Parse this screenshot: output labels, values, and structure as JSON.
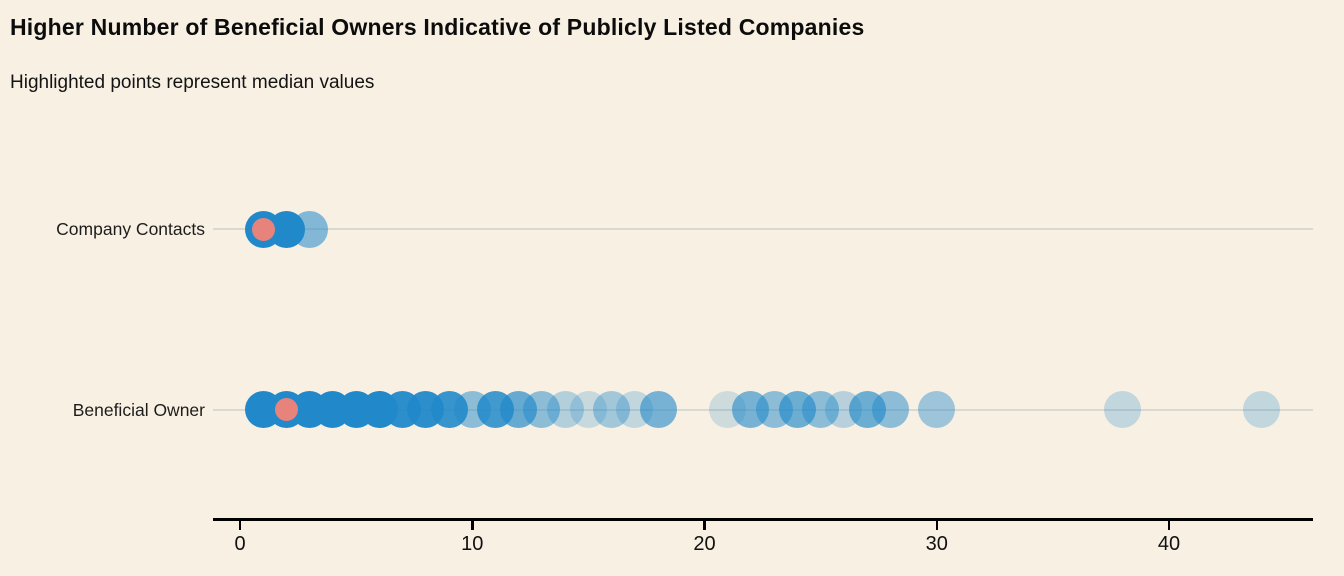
{
  "header": {
    "title": "Higher Number of Beneficial Owners Indicative of Publicly Listed Companies",
    "subtitle": "Highlighted points represent median values"
  },
  "chart_data": {
    "type": "scatter",
    "variant": "strip-plot",
    "title": "Higher Number of Beneficial Owners Indicative of Publicly Listed Companies",
    "subtitle": "Highlighted points represent median values",
    "xlabel": "",
    "ylabel": "",
    "x_axis": {
      "ticks": [
        0,
        10,
        20,
        30,
        40
      ],
      "range": [
        -1.2,
        46.2
      ]
    },
    "grid": "horizontal-category-lines",
    "legend": "none",
    "rows": [
      {
        "label": "Company Contacts",
        "median": 1,
        "points": [
          {
            "x": 1,
            "opacity": 1.0
          },
          {
            "x": 2,
            "opacity": 1.0
          },
          {
            "x": 3,
            "opacity": 0.55
          }
        ]
      },
      {
        "label": "Beneficial Owner",
        "median": 2,
        "points": [
          {
            "x": 1,
            "opacity": 1.0
          },
          {
            "x": 2,
            "opacity": 1.0
          },
          {
            "x": 3,
            "opacity": 1.0
          },
          {
            "x": 4,
            "opacity": 1.0
          },
          {
            "x": 5,
            "opacity": 1.0
          },
          {
            "x": 6,
            "opacity": 1.0
          },
          {
            "x": 7,
            "opacity": 0.95
          },
          {
            "x": 8,
            "opacity": 0.95
          },
          {
            "x": 9,
            "opacity": 0.9
          },
          {
            "x": 10,
            "opacity": 0.5
          },
          {
            "x": 11,
            "opacity": 0.85
          },
          {
            "x": 12,
            "opacity": 0.68
          },
          {
            "x": 13,
            "opacity": 0.5
          },
          {
            "x": 14,
            "opacity": 0.32
          },
          {
            "x": 15,
            "opacity": 0.22
          },
          {
            "x": 16,
            "opacity": 0.4
          },
          {
            "x": 17,
            "opacity": 0.25
          },
          {
            "x": 18,
            "opacity": 0.6
          },
          {
            "x": 21,
            "opacity": 0.2
          },
          {
            "x": 22,
            "opacity": 0.6
          },
          {
            "x": 23,
            "opacity": 0.5
          },
          {
            "x": 24,
            "opacity": 0.65
          },
          {
            "x": 25,
            "opacity": 0.5
          },
          {
            "x": 26,
            "opacity": 0.3
          },
          {
            "x": 27,
            "opacity": 0.65
          },
          {
            "x": 28,
            "opacity": 0.5
          },
          {
            "x": 30,
            "opacity": 0.42
          },
          {
            "x": 38,
            "opacity": 0.25
          },
          {
            "x": 44,
            "opacity": 0.25
          }
        ]
      }
    ],
    "colors": {
      "point_blue": "#2189ca",
      "median_red": "#e8837b",
      "background": "#f8f0e3",
      "gridline": "#d9d9d3",
      "axis": "#000000"
    }
  }
}
